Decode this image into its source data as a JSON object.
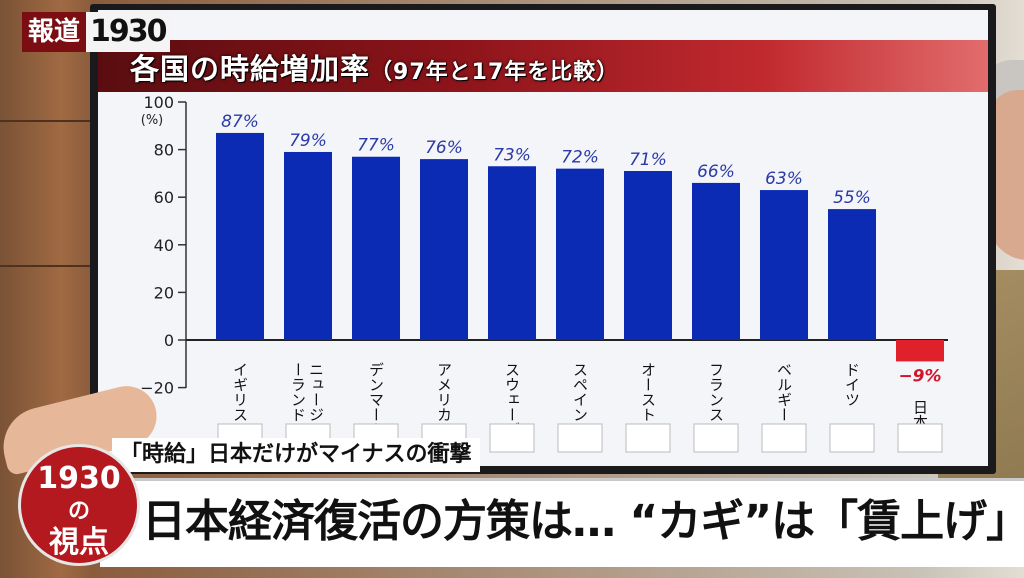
{
  "logo": {
    "jp": "報道",
    "num": "1930"
  },
  "chart_title": {
    "main": "各国の時給増加率",
    "paren": "（97年と17年を比較）"
  },
  "chart_data": {
    "type": "bar",
    "title": "各国の時給増加率（97年と17年を比較）",
    "categories": [
      "イギリス",
      "ニュージーランド",
      "デンマーク",
      "アメリカ",
      "スウェーデン",
      "スペイン",
      "オーストリア",
      "フランス",
      "ベルギー",
      "ドイツ",
      "日本"
    ],
    "values": [
      87,
      79,
      77,
      76,
      73,
      72,
      71,
      66,
      63,
      55,
      -9
    ],
    "value_labels": [
      "87%",
      "79%",
      "77%",
      "76%",
      "73%",
      "72%",
      "71%",
      "66%",
      "63%",
      "55%",
      "−9%"
    ],
    "ylabel": "(%)",
    "ylim": [
      -20,
      100
    ],
    "yticks": [
      "100",
      "80",
      "60",
      "40",
      "20",
      "0",
      "−20"
    ],
    "colors": {
      "positive": "#0b2bb4",
      "negative": "#e0202a",
      "label_positive": "#2a3aa8",
      "label_negative": "#d3142c"
    }
  },
  "caption": {
    "top": "「時給」日本だけがマイナスの衝撃",
    "main": "日本経済復活の方策は… “カギ”は「賃上げ」？"
  },
  "badge": {
    "year": "1930",
    "no": "の",
    "view": "視点"
  }
}
